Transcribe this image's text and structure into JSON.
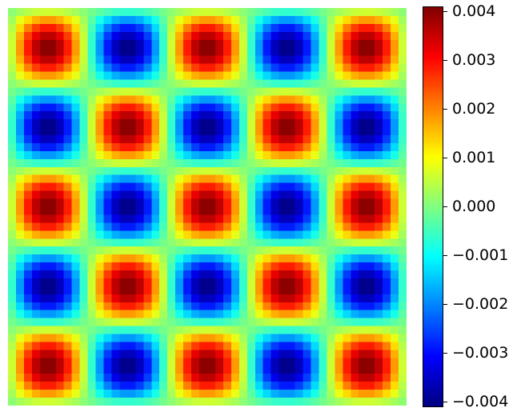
{
  "chart_data": {
    "type": "heatmap",
    "title": "",
    "xlabel": "",
    "ylabel": "",
    "grid": {
      "rows": 50,
      "cols": 50
    },
    "pattern": {
      "periods_x": 5,
      "periods_y": 5,
      "amplitude": 0.0041,
      "top_left_sign": 1
    },
    "colormap": "jet",
    "colorbar": {
      "vmin": -0.0041,
      "vmax": 0.0041,
      "ticks": [
        0.004,
        0.003,
        0.002,
        0.001,
        0.0,
        -0.001,
        -0.002,
        -0.003,
        -0.004
      ],
      "tick_labels": [
        "0.004",
        "0.003",
        "0.002",
        "0.001",
        "0.000",
        "−0.001",
        "−0.002",
        "−0.003",
        "−0.004"
      ]
    }
  }
}
